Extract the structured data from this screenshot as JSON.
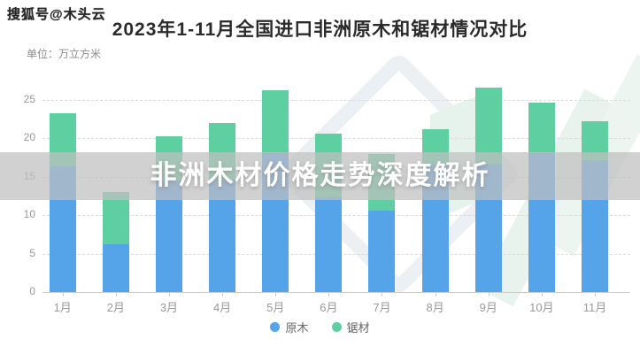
{
  "header": {
    "account_watermark": "搜狐号@木头云",
    "title": "2023年1-11月全国进口非洲原木和锯材情况对比",
    "unit_label": "单位：万立方米"
  },
  "overlay_banner": {
    "text": "非洲木材价格走势深度解析"
  },
  "chart_data": {
    "type": "bar",
    "stacked": true,
    "title": "2023年1-11月全国进口非洲原木和锯材情况对比",
    "ylabel": "单位：万立方米",
    "categories": [
      "1月",
      "2月",
      "3月",
      "4月",
      "5月",
      "6月",
      "7月",
      "8月",
      "9月",
      "10月",
      "11月"
    ],
    "series": [
      {
        "name": "原木",
        "color": "#55a3e8",
        "values": [
          16.3,
          6.2,
          14.5,
          14.6,
          18.1,
          12.3,
          10.6,
          16.5,
          16.7,
          18.1,
          17.1
        ]
      },
      {
        "name": "锯材",
        "color": "#5ecfa0",
        "values": [
          6.9,
          6.8,
          5.7,
          7.4,
          8.1,
          8.3,
          7.3,
          4.7,
          9.9,
          6.5,
          5.1
        ]
      }
    ],
    "totals": [
      23.2,
      13.0,
      20.2,
      22.0,
      26.2,
      20.6,
      17.9,
      21.2,
      26.6,
      24.6,
      22.2
    ],
    "yticks": [
      0,
      5,
      10,
      15,
      20,
      25
    ],
    "ylim": [
      0,
      27.5
    ],
    "grid": "horizontal-dashed",
    "legend_position": "bottom"
  },
  "legend": {
    "items": [
      {
        "label": "原木",
        "color": "#55a3e8"
      },
      {
        "label": "锯材",
        "color": "#5ecfa0"
      }
    ]
  }
}
